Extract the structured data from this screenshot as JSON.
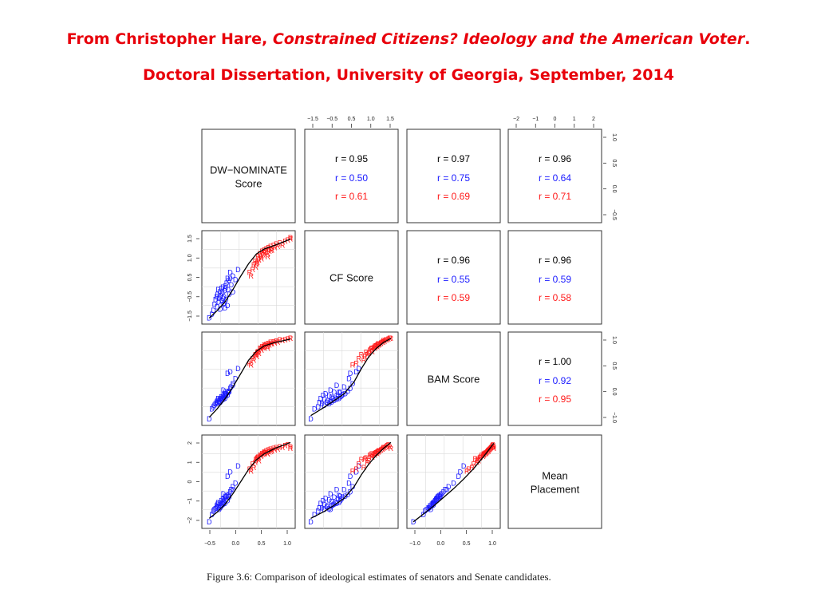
{
  "heading": {
    "line1_prefix": "From Christopher Hare, ",
    "line1_italic": "Constrained Citizens?  Ideology and the American Voter",
    "line1_suffix": ".",
    "line2": "Doctoral Dissertation, University of Georgia, September, 2014"
  },
  "caption": "Figure 3.6: Comparison of ideological estimates of senators and Senate candidates.",
  "colors": {
    "heading": "#e8000b",
    "democrat": "#1a1aff",
    "republican": "#ff1a1a",
    "overall": "#000000",
    "frame": "#333333"
  },
  "chart_data": {
    "type": "scatter",
    "layout": "scatterplot-matrix",
    "variables": [
      {
        "label": "DW−NOMINATE\nScore",
        "ticks": [
          "−0.5",
          "0.0",
          "0.5",
          "1.0"
        ],
        "range": [
          -0.6,
          1.0
        ]
      },
      {
        "label": "CF Score",
        "ticks": [
          "−1.5",
          "−0.5",
          "0.5",
          "1.0",
          "1.5"
        ],
        "range": [
          -1.8,
          1.6
        ]
      },
      {
        "label": "BAM Score",
        "ticks": [
          "−1.0",
          "0.0",
          "0.5",
          "1.0"
        ],
        "range": [
          -1.35,
          1.15
        ]
      },
      {
        "label": "Mean\nPlacement",
        "ticks": [
          "−2",
          "−1",
          "0",
          "1",
          "2"
        ],
        "range": [
          -2.4,
          2.4
        ]
      }
    ],
    "top_axis": {
      "column1": [
        "−1.5",
        "−0.5",
        "0.5",
        "1.0",
        "1.5"
      ],
      "column3": [
        "−2",
        "−1",
        "0",
        "1",
        "2"
      ]
    },
    "right_axis": {
      "row0": [
        "−0.5",
        "0.0",
        "0.5",
        "1.0"
      ],
      "row2": [
        "−1.0",
        "0.0",
        "0.5",
        "1.0"
      ]
    },
    "bottom_axis": {
      "column0": [
        "−0.5",
        "0.0",
        "0.5",
        "1.0"
      ],
      "column2": [
        "−1.0",
        "0.0",
        "0.5",
        "1.0"
      ]
    },
    "left_axis": {
      "row1": [
        "−1.5",
        "−0.5",
        "0.5",
        "1.0",
        "1.5"
      ],
      "row3": [
        "−2",
        "−1",
        "0",
        "1",
        "2"
      ]
    },
    "correlations": [
      {
        "row": 0,
        "col": 1,
        "overall": "r = 0.95",
        "democrat": "r = 0.50",
        "republican": "r = 0.61"
      },
      {
        "row": 0,
        "col": 2,
        "overall": "r = 0.97",
        "democrat": "r = 0.75",
        "republican": "r = 0.69"
      },
      {
        "row": 0,
        "col": 3,
        "overall": "r = 0.96",
        "democrat": "r = 0.64",
        "republican": "r = 0.71"
      },
      {
        "row": 1,
        "col": 2,
        "overall": "r = 0.96",
        "democrat": "r = 0.55",
        "republican": "r = 0.59"
      },
      {
        "row": 1,
        "col": 3,
        "overall": "r = 0.96",
        "democrat": "r = 0.59",
        "republican": "r = 0.58"
      },
      {
        "row": 2,
        "col": 3,
        "overall": "r = 1.00",
        "democrat": "r = 0.92",
        "republican": "r = 0.95"
      }
    ],
    "point_symbols": {
      "democrat": "D",
      "republican": "R"
    },
    "senators": [
      {
        "p": "D",
        "v": [
          -0.55,
          -1.75,
          -1.3,
          -2.3
        ]
      },
      {
        "p": "D",
        "v": [
          -0.5,
          -1.6,
          -1.0,
          -1.9
        ]
      },
      {
        "p": "D",
        "v": [
          -0.47,
          -1.45,
          -0.95,
          -1.7
        ]
      },
      {
        "p": "D",
        "v": [
          -0.45,
          -1.2,
          -0.9,
          -1.6
        ]
      },
      {
        "p": "D",
        "v": [
          -0.43,
          -1.0,
          -0.85,
          -1.55
        ]
      },
      {
        "p": "D",
        "v": [
          -0.41,
          -0.9,
          -0.8,
          -1.4
        ]
      },
      {
        "p": "D",
        "v": [
          -0.4,
          -1.3,
          -0.85,
          -1.5
        ]
      },
      {
        "p": "D",
        "v": [
          -0.39,
          -0.8,
          -0.75,
          -1.3
        ]
      },
      {
        "p": "D",
        "v": [
          -0.38,
          -0.6,
          -0.7,
          -1.2
        ]
      },
      {
        "p": "D",
        "v": [
          -0.37,
          -1.1,
          -0.8,
          -1.45
        ]
      },
      {
        "p": "D",
        "v": [
          -0.36,
          -0.95,
          -0.78,
          -1.6
        ]
      },
      {
        "p": "D",
        "v": [
          -0.35,
          -0.7,
          -0.72,
          -1.25
        ]
      },
      {
        "p": "D",
        "v": [
          -0.34,
          -1.4,
          -0.82,
          -1.5
        ]
      },
      {
        "p": "D",
        "v": [
          -0.33,
          -0.85,
          -0.7,
          -1.35
        ]
      },
      {
        "p": "D",
        "v": [
          -0.32,
          -0.55,
          -0.65,
          -1.1
        ]
      },
      {
        "p": "D",
        "v": [
          -0.31,
          -1.05,
          -0.75,
          -1.4
        ]
      },
      {
        "p": "D",
        "v": [
          -0.3,
          -0.75,
          -0.68,
          -1.2
        ]
      },
      {
        "p": "D",
        "v": [
          -0.29,
          -0.5,
          -0.62,
          -1.0
        ]
      },
      {
        "p": "D",
        "v": [
          -0.28,
          -1.2,
          -0.72,
          -1.3
        ]
      },
      {
        "p": "D",
        "v": [
          -0.27,
          -0.9,
          -0.66,
          -1.15
        ]
      },
      {
        "p": "D",
        "v": [
          -0.26,
          -0.65,
          -0.6,
          -0.95
        ]
      },
      {
        "p": "D",
        "v": [
          -0.25,
          -1.35,
          -0.7,
          -1.25
        ]
      },
      {
        "p": "D",
        "v": [
          -0.24,
          -0.45,
          -0.58,
          -0.9
        ]
      },
      {
        "p": "D",
        "v": [
          -0.23,
          -1.0,
          -0.62,
          -1.05
        ]
      },
      {
        "p": "D",
        "v": [
          -0.22,
          -0.35,
          -0.55,
          -0.85
        ]
      },
      {
        "p": "D",
        "v": [
          -0.2,
          -1.25,
          -0.6,
          -1.1
        ]
      },
      {
        "p": "D",
        "v": [
          -0.19,
          -0.6,
          -0.52,
          -0.8
        ]
      },
      {
        "p": "D",
        "v": [
          -0.18,
          -0.25,
          -0.48,
          -0.75
        ]
      },
      {
        "p": "D",
        "v": [
          -0.17,
          -0.8,
          -0.5,
          -0.9
        ]
      },
      {
        "p": "D",
        "v": [
          -0.15,
          -0.15,
          -0.4,
          -0.6
        ]
      },
      {
        "p": "D",
        "v": [
          -0.13,
          -0.4,
          -0.35,
          -0.45
        ]
      },
      {
        "p": "D",
        "v": [
          -0.1,
          -0.05,
          -0.25,
          -0.3
        ]
      },
      {
        "p": "D",
        "v": [
          -0.1,
          -0.7,
          -0.3,
          -0.45
        ]
      },
      {
        "p": "D",
        "v": [
          -0.05,
          -0.2,
          -0.1,
          -0.1
        ]
      },
      {
        "p": "D",
        "v": [
          -0.2,
          -0.15,
          0.05,
          0.3
        ]
      },
      {
        "p": "D",
        "v": [
          -0.15,
          0.1,
          0.1,
          0.55
        ]
      },
      {
        "p": "D",
        "v": [
          0.0,
          0.2,
          0.2,
          0.9
        ]
      },
      {
        "p": "D",
        "v": [
          -0.28,
          -0.95,
          -0.45,
          -0.7
        ]
      },
      {
        "p": "D",
        "v": [
          -0.26,
          -1.15,
          -0.55,
          -0.95
        ]
      },
      {
        "p": "D",
        "v": [
          -0.24,
          -0.55,
          -0.5,
          -0.85
        ]
      },
      {
        "p": "R",
        "v": [
          0.3,
          0.4,
          0.45,
          0.8
        ]
      },
      {
        "p": "R",
        "v": [
          0.28,
          0.2,
          0.5,
          1.0
        ]
      },
      {
        "p": "R",
        "v": [
          0.33,
          0.55,
          0.6,
          1.1
        ]
      },
      {
        "p": "R",
        "v": [
          0.36,
          0.45,
          0.55,
          1.3
        ]
      },
      {
        "p": "R",
        "v": [
          0.38,
          0.75,
          0.7,
          1.4
        ]
      },
      {
        "p": "R",
        "v": [
          0.4,
          0.6,
          0.65,
          1.2
        ]
      },
      {
        "p": "R",
        "v": [
          0.42,
          0.85,
          0.8,
          1.5
        ]
      },
      {
        "p": "R",
        "v": [
          0.44,
          0.7,
          0.78,
          1.45
        ]
      },
      {
        "p": "R",
        "v": [
          0.46,
          0.95,
          0.85,
          1.6
        ]
      },
      {
        "p": "R",
        "v": [
          0.48,
          0.8,
          0.82,
          1.55
        ]
      },
      {
        "p": "R",
        "v": [
          0.5,
          1.0,
          0.9,
          1.7
        ]
      },
      {
        "p": "R",
        "v": [
          0.52,
          0.9,
          0.88,
          1.65
        ]
      },
      {
        "p": "R",
        "v": [
          0.54,
          1.05,
          0.92,
          1.75
        ]
      },
      {
        "p": "R",
        "v": [
          0.56,
          0.85,
          0.86,
          1.6
        ]
      },
      {
        "p": "R",
        "v": [
          0.58,
          1.1,
          0.95,
          1.8
        ]
      },
      {
        "p": "R",
        "v": [
          0.6,
          0.95,
          0.9,
          1.7
        ]
      },
      {
        "p": "R",
        "v": [
          0.62,
          1.15,
          0.98,
          1.85
        ]
      },
      {
        "p": "R",
        "v": [
          0.65,
          1.0,
          0.93,
          1.75
        ]
      },
      {
        "p": "R",
        "v": [
          0.68,
          1.2,
          1.0,
          1.9
        ]
      },
      {
        "p": "R",
        "v": [
          0.7,
          1.1,
          0.96,
          1.8
        ]
      },
      {
        "p": "R",
        "v": [
          0.73,
          1.25,
          1.02,
          1.95
        ]
      },
      {
        "p": "R",
        "v": [
          0.76,
          1.15,
          0.98,
          1.85
        ]
      },
      {
        "p": "R",
        "v": [
          0.8,
          1.3,
          1.05,
          2.0
        ]
      },
      {
        "p": "R",
        "v": [
          0.85,
          1.2,
          1.03,
          1.95
        ]
      },
      {
        "p": "R",
        "v": [
          0.9,
          1.35,
          1.06,
          2.05
        ]
      },
      {
        "p": "R",
        "v": [
          0.95,
          1.4,
          1.08,
          2.1
        ]
      },
      {
        "p": "R",
        "v": [
          1.0,
          1.45,
          1.1,
          2.0
        ]
      },
      {
        "p": "R",
        "v": [
          1.0,
          1.5,
          1.1,
          1.9
        ]
      },
      {
        "p": "R",
        "v": [
          0.34,
          0.3,
          0.62,
          1.25
        ]
      },
      {
        "p": "R",
        "v": [
          0.37,
          0.5,
          0.68,
          1.35
        ]
      },
      {
        "p": "R",
        "v": [
          0.45,
          0.65,
          0.74,
          1.5
        ]
      },
      {
        "p": "R",
        "v": [
          0.49,
          0.88,
          0.84,
          1.62
        ]
      },
      {
        "p": "R",
        "v": [
          0.57,
          0.72,
          0.8,
          1.58
        ]
      },
      {
        "p": "R",
        "v": [
          0.63,
          0.98,
          0.94,
          1.72
        ]
      },
      {
        "p": "R",
        "v": [
          0.25,
          -0.05,
          0.3,
          0.6
        ]
      },
      {
        "p": "R",
        "v": [
          0.22,
          0.1,
          0.35,
          0.7
        ]
      }
    ],
    "fit_curves": [
      {
        "row": 1,
        "col": 0,
        "x": [
          -0.55,
          -0.4,
          -0.25,
          -0.1,
          0.05,
          0.2,
          0.35,
          0.5,
          0.7,
          1.0
        ],
        "y": [
          -1.75,
          -1.45,
          -1.1,
          -0.6,
          -0.05,
          0.45,
          0.85,
          1.05,
          1.2,
          1.45
        ]
      },
      {
        "row": 2,
        "col": 0,
        "x": [
          -0.55,
          -0.4,
          -0.25,
          -0.1,
          0.05,
          0.2,
          0.35,
          0.5,
          0.7,
          1.0
        ],
        "y": [
          -1.25,
          -1.0,
          -0.7,
          -0.35,
          0.05,
          0.45,
          0.72,
          0.88,
          0.98,
          1.08
        ]
      },
      {
        "row": 3,
        "col": 0,
        "x": [
          -0.55,
          -0.4,
          -0.25,
          -0.1,
          0.05,
          0.2,
          0.35,
          0.5,
          0.7,
          1.0
        ],
        "y": [
          -2.1,
          -1.75,
          -1.3,
          -0.7,
          0.0,
          0.7,
          1.25,
          1.6,
          1.9,
          2.25
        ]
      },
      {
        "row": 2,
        "col": 1,
        "x": [
          -1.75,
          -1.2,
          -0.8,
          -0.4,
          0.0,
          0.3,
          0.6,
          0.9,
          1.2,
          1.5
        ],
        "y": [
          -1.2,
          -0.95,
          -0.75,
          -0.55,
          -0.2,
          0.2,
          0.55,
          0.8,
          0.98,
          1.1
        ]
      },
      {
        "row": 3,
        "col": 1,
        "x": [
          -1.75,
          -1.2,
          -0.8,
          -0.4,
          0.0,
          0.3,
          0.6,
          0.9,
          1.2,
          1.5
        ],
        "y": [
          -2.1,
          -1.7,
          -1.35,
          -0.95,
          -0.3,
          0.4,
          1.0,
          1.5,
          1.9,
          2.25
        ]
      },
      {
        "row": 3,
        "col": 2,
        "x": [
          -1.3,
          -1.0,
          -0.7,
          -0.4,
          -0.1,
          0.2,
          0.5,
          0.8,
          1.1
        ],
        "y": [
          -2.3,
          -1.85,
          -1.4,
          -0.9,
          -0.4,
          0.15,
          0.75,
          1.45,
          2.2
        ]
      }
    ]
  }
}
